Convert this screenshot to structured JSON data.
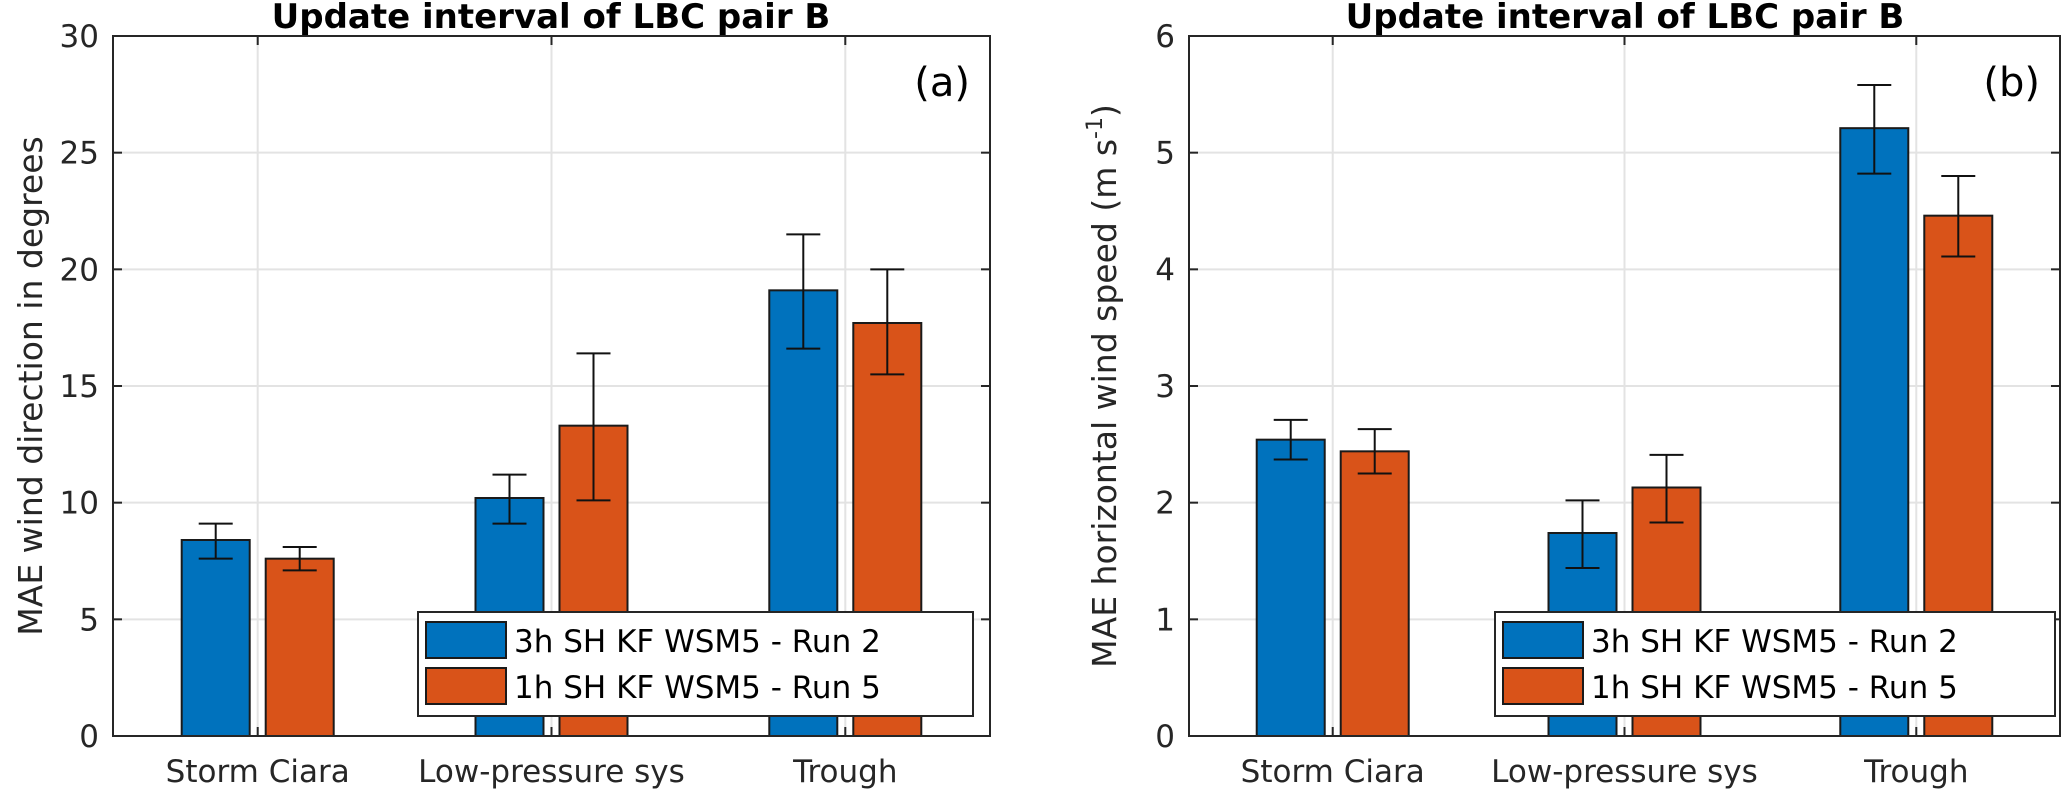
{
  "chart_data": [
    {
      "type": "bar",
      "panel_label": "(a)",
      "title": "Update interval of LBC pair B",
      "xlabel": "",
      "ylabel": "MAE wind direction in degrees",
      "ylim": [
        0,
        30
      ],
      "yticks": [
        0,
        5,
        10,
        15,
        20,
        25,
        30
      ],
      "grid": true,
      "legend_position": "bottom-right",
      "categories": [
        "Storm Ciara",
        "Low-pressure sys",
        "Trough"
      ],
      "series": [
        {
          "name": "3h SH KF WSM5 - Run 2",
          "color": "#0072BD",
          "values": [
            8.4,
            10.2,
            19.1
          ],
          "err_low": [
            7.6,
            9.1,
            16.6
          ],
          "err_high": [
            9.1,
            11.2,
            21.5
          ]
        },
        {
          "name": "1h SH KF WSM5 - Run 5",
          "color": "#D95319",
          "values": [
            7.6,
            13.3,
            17.7
          ],
          "err_low": [
            7.1,
            10.1,
            15.5
          ],
          "err_high": [
            8.1,
            16.4,
            20.0
          ]
        }
      ]
    },
    {
      "type": "bar",
      "panel_label": "(b)",
      "title": "Update interval of LBC pair B",
      "xlabel": "",
      "ylabel": "MAE horizontal wind speed (m s",
      "ylabel_sup": "-1",
      "ylabel_end": ")",
      "ylim": [
        0,
        6
      ],
      "yticks": [
        0,
        1,
        2,
        3,
        4,
        5,
        6
      ],
      "grid": true,
      "legend_position": "bottom-right",
      "categories": [
        "Storm Ciara",
        "Low-pressure sys",
        "Trough"
      ],
      "series": [
        {
          "name": "3h SH KF WSM5 - Run 2",
          "color": "#0072BD",
          "values": [
            2.54,
            1.74,
            5.21
          ],
          "err_low": [
            2.37,
            1.44,
            4.82
          ],
          "err_high": [
            2.71,
            2.02,
            5.58
          ]
        },
        {
          "name": "1h SH KF WSM5 - Run 5",
          "color": "#D95319",
          "values": [
            2.44,
            2.13,
            4.46
          ],
          "err_low": [
            2.25,
            1.83,
            4.11
          ],
          "err_high": [
            2.63,
            2.41,
            4.8
          ]
        }
      ]
    }
  ]
}
